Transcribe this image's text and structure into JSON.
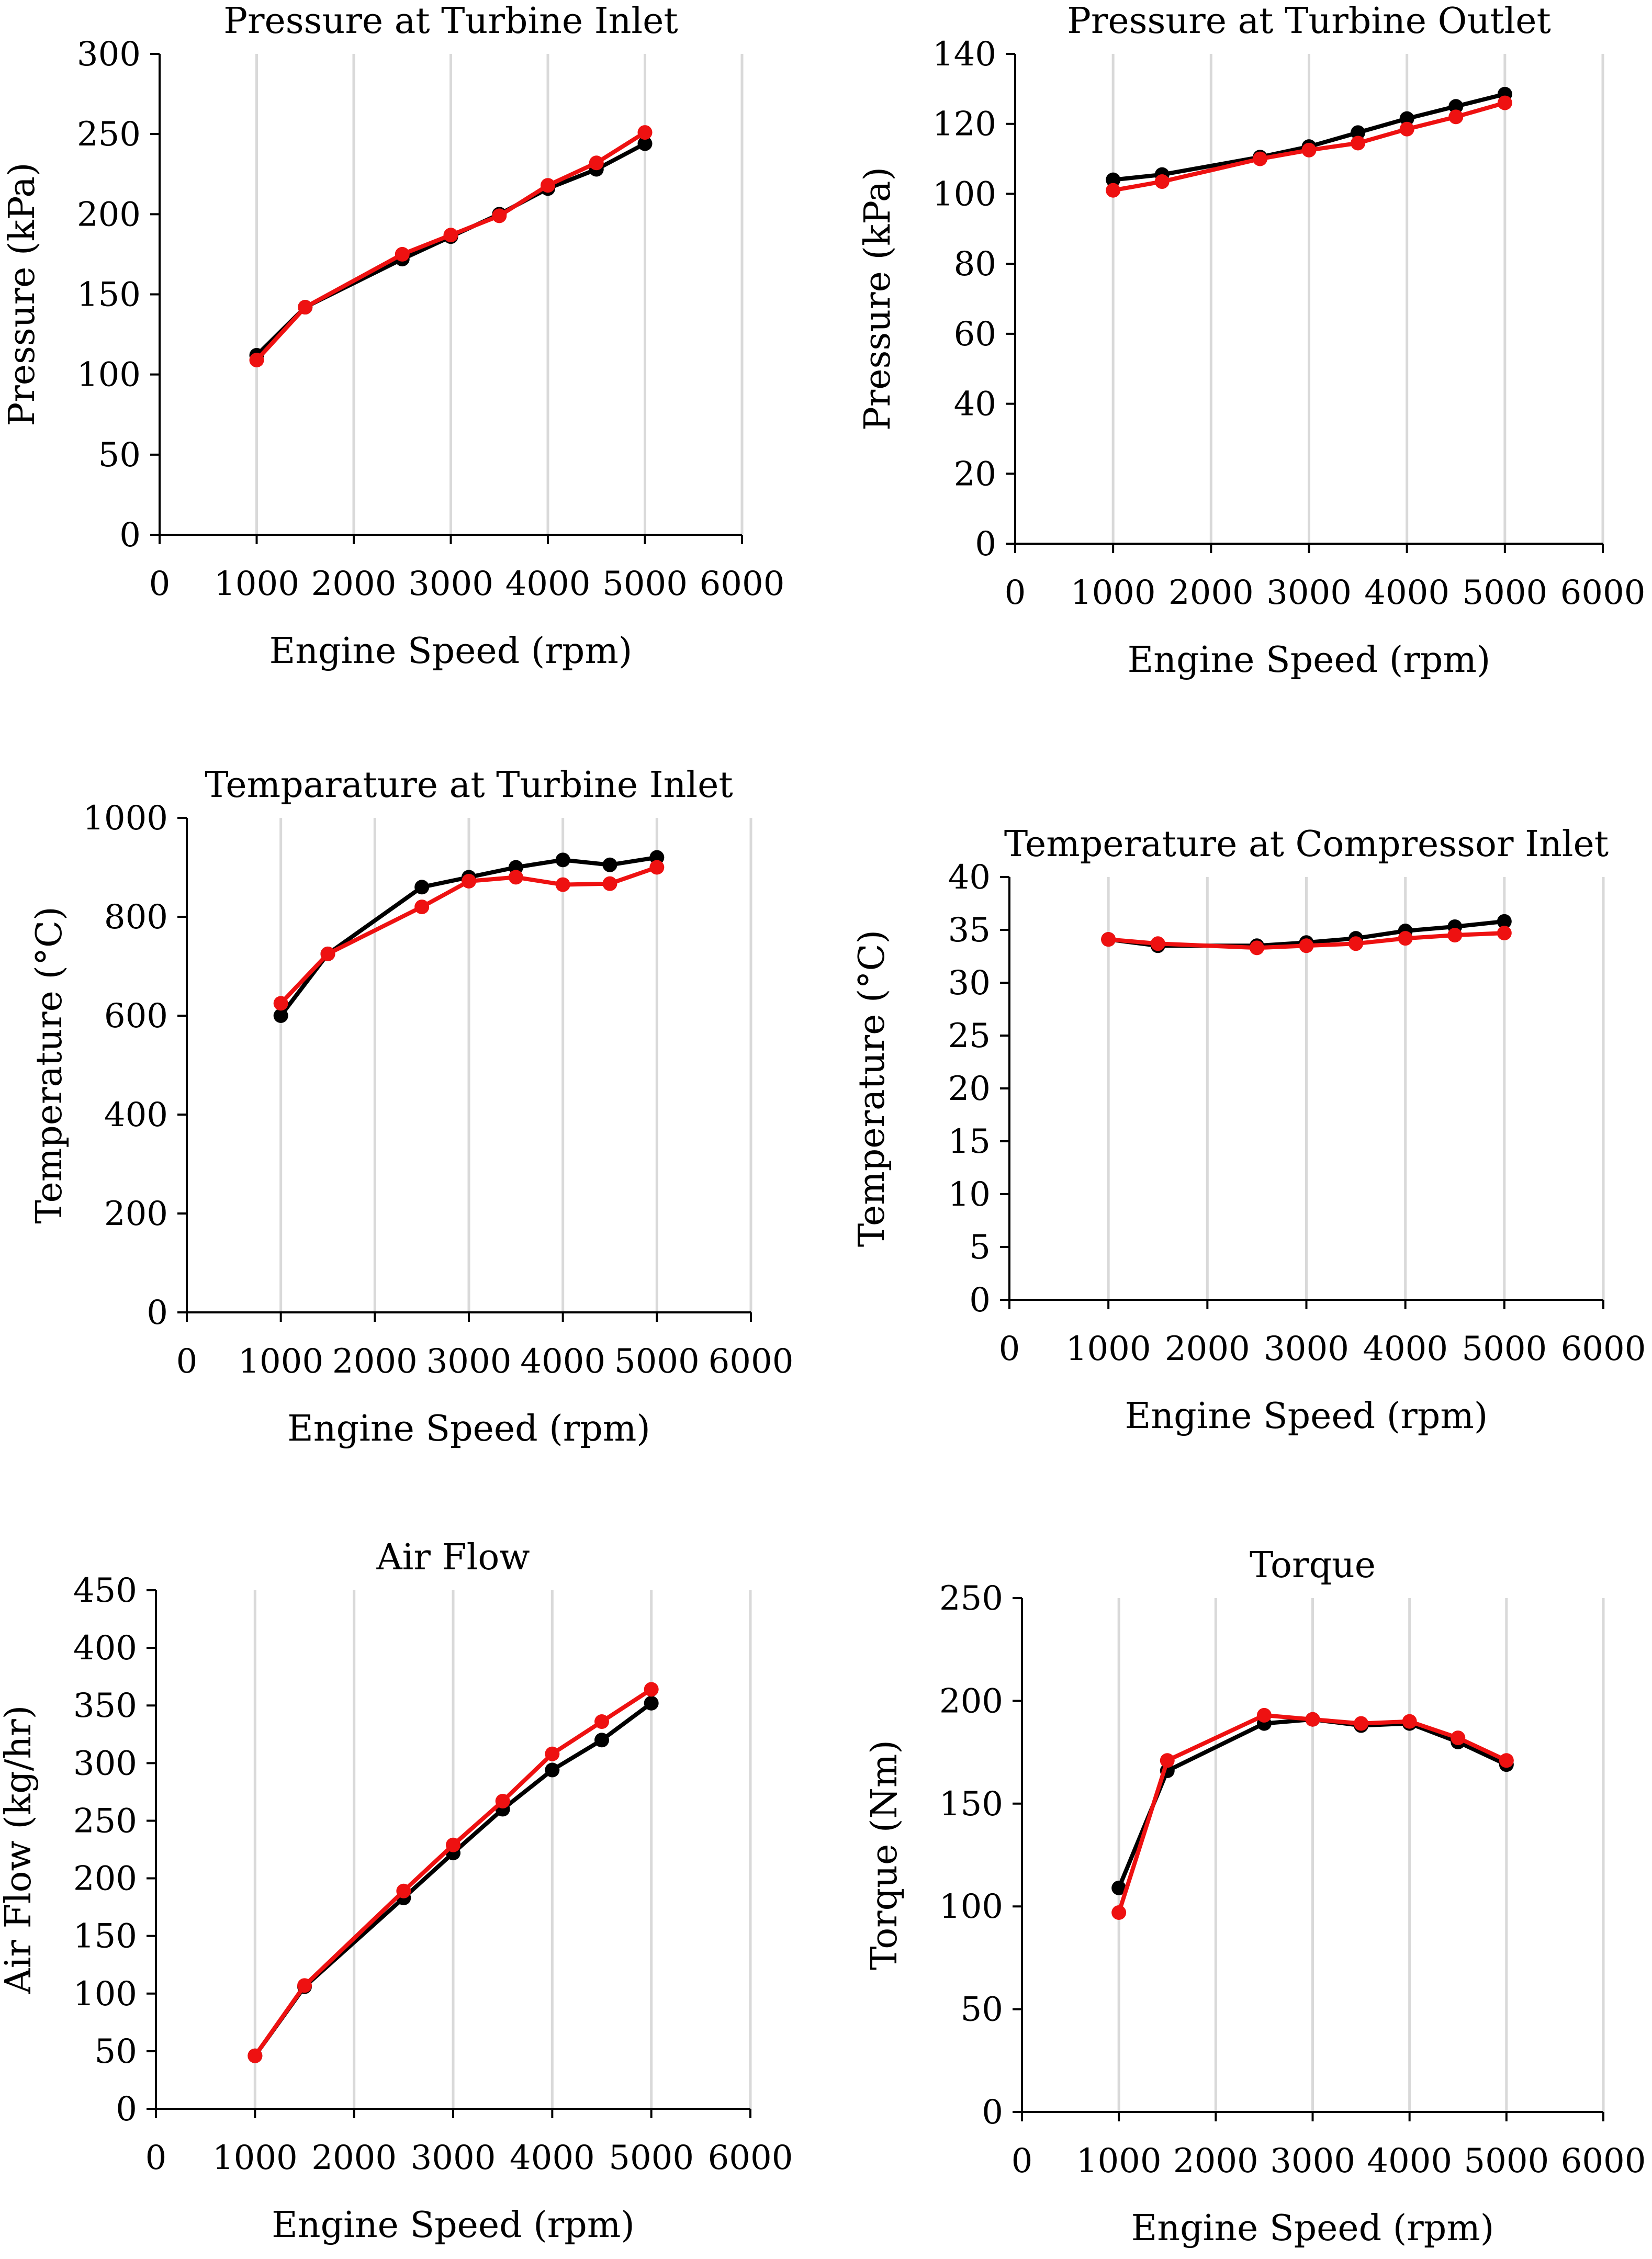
{
  "chart_data": [
    {
      "type": "line",
      "title": "Pressure at Turbine Inlet",
      "xlabel": "Engine Speed (rpm)",
      "ylabel": "Pressure (kPa)",
      "xlim": [
        0,
        6000
      ],
      "ylim": [
        0,
        300
      ],
      "xstep": 1000,
      "ystep": 50,
      "grid": "vertical",
      "x": [
        1000,
        1500,
        2500,
        3000,
        3500,
        4000,
        4500,
        5000
      ],
      "series": [
        {
          "name": "series-black",
          "color": "#000000",
          "values": [
            112,
            142,
            172,
            186,
            200,
            216,
            228,
            244
          ]
        },
        {
          "name": "series-red",
          "color": "#ee1111",
          "values": [
            109,
            142,
            175,
            187,
            199,
            218,
            232,
            251
          ]
        }
      ]
    },
    {
      "type": "line",
      "title": "Pressure at Turbine Outlet",
      "xlabel": "Engine Speed (rpm)",
      "ylabel": "Pressure (kPa)",
      "xlim": [
        0,
        6000
      ],
      "ylim": [
        0,
        140
      ],
      "xstep": 1000,
      "ystep": 20,
      "grid": "vertical",
      "x": [
        1000,
        1500,
        2500,
        3000,
        3500,
        4000,
        4500,
        5000
      ],
      "series": [
        {
          "name": "series-black",
          "color": "#000000",
          "values": [
            104,
            105.5,
            110.5,
            113.5,
            117.5,
            121.5,
            125,
            128.5
          ]
        },
        {
          "name": "series-red",
          "color": "#ee1111",
          "values": [
            101,
            103.5,
            110,
            112.5,
            114.5,
            118.5,
            122,
            126
          ]
        }
      ]
    },
    {
      "type": "line",
      "title": "Temparature at Turbine Inlet",
      "xlabel": "Engine Speed (rpm)",
      "ylabel": "Temperature (°C)",
      "xlim": [
        0,
        6000
      ],
      "ylim": [
        0,
        1000
      ],
      "xstep": 1000,
      "ystep": 200,
      "grid": "vertical",
      "x": [
        1000,
        1500,
        2500,
        3000,
        3500,
        4000,
        4500,
        5000
      ],
      "series": [
        {
          "name": "series-black",
          "color": "#000000",
          "values": [
            600,
            725,
            860,
            880,
            900,
            915,
            905,
            920
          ]
        },
        {
          "name": "series-red",
          "color": "#ee1111",
          "values": [
            625,
            725,
            820,
            872,
            880,
            865,
            867,
            900
          ]
        }
      ]
    },
    {
      "type": "line",
      "title": "Temperature at Compressor Inlet",
      "xlabel": "Engine Speed (rpm)",
      "ylabel": "Temperature (°C)",
      "xlim": [
        0,
        6000
      ],
      "ylim": [
        0,
        40
      ],
      "xstep": 1000,
      "ystep": 5,
      "grid": "vertical",
      "x": [
        1000,
        1500,
        2500,
        3000,
        3500,
        4000,
        4500,
        5000
      ],
      "series": [
        {
          "name": "series-black",
          "color": "#000000",
          "values": [
            34.1,
            33.5,
            33.5,
            33.8,
            34.2,
            34.9,
            35.3,
            35.8
          ]
        },
        {
          "name": "series-red",
          "color": "#ee1111",
          "values": [
            34.1,
            33.7,
            33.3,
            33.5,
            33.7,
            34.2,
            34.5,
            34.7
          ]
        }
      ]
    },
    {
      "type": "line",
      "title": "Air Flow",
      "xlabel": "Engine Speed (rpm)",
      "ylabel": "Air Flow (kg/hr)",
      "xlim": [
        0,
        6000
      ],
      "ylim": [
        0,
        450
      ],
      "xstep": 1000,
      "ystep": 50,
      "grid": "vertical",
      "x": [
        1000,
        1500,
        2500,
        3000,
        3500,
        4000,
        4500,
        5000
      ],
      "series": [
        {
          "name": "series-black",
          "color": "#000000",
          "values": [
            46,
            106,
            183,
            222,
            260,
            294,
            320,
            352
          ]
        },
        {
          "name": "series-red",
          "color": "#ee1111",
          "values": [
            46,
            107,
            189,
            229,
            267,
            308,
            336,
            364
          ]
        }
      ]
    },
    {
      "type": "line",
      "title": "Torque",
      "xlabel": "Engine Speed (rpm)",
      "ylabel": "Torque (Nm)",
      "xlim": [
        0,
        6000
      ],
      "ylim": [
        0,
        250
      ],
      "xstep": 1000,
      "ystep": 50,
      "grid": "vertical",
      "x": [
        1000,
        1500,
        2500,
        3000,
        3500,
        4000,
        4500,
        5000
      ],
      "series": [
        {
          "name": "series-black",
          "color": "#000000",
          "values": [
            109,
            166,
            189,
            191,
            188,
            189,
            180,
            169
          ]
        },
        {
          "name": "series-red",
          "color": "#ee1111",
          "values": [
            97,
            171,
            193,
            191,
            189,
            190,
            182,
            171
          ]
        }
      ]
    }
  ]
}
